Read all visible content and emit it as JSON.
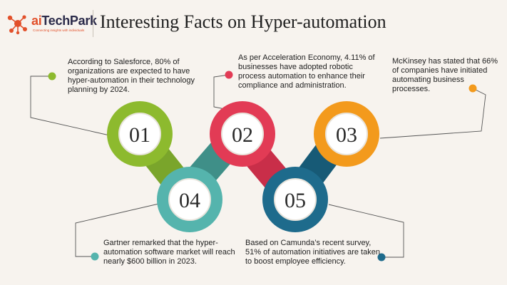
{
  "brand": {
    "logo_text_prefix": "ai",
    "logo_text_suffix": "TechPark",
    "tagline": "Connecting insights with individuals"
  },
  "title": "Interesting Facts on Hyper-automation",
  "facts": [
    {
      "number": "01",
      "color": "#8dba2e",
      "text": "According to Salesforce, 80% of organizations are expected to have hyper-automation in their technology planning by 2024."
    },
    {
      "number": "02",
      "color": "#e23b55",
      "text": "As per Acceleration Economy, 4.11% of businesses have adopted robotic process automation to enhance their compliance and administration."
    },
    {
      "number": "03",
      "color": "#f39a1c",
      "text": "McKinsey has stated that 66% of companies have initiated automating business processes."
    },
    {
      "number": "04",
      "color": "#55b4ad",
      "text": "Gartner remarked that the hyper-automation software market will reach nearly $600 billion in 2023."
    },
    {
      "number": "05",
      "color": "#1e6b8c",
      "text": "Based on Camunda’s recent survey, 51% of automation initiatives are taken to boost employee efficiency."
    }
  ]
}
